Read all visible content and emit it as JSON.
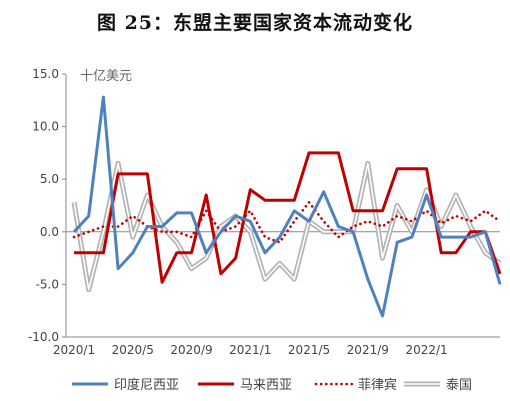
{
  "title": "图 25：东盟主要国家资本流动变化",
  "chart_data": {
    "type": "line",
    "unit_label": "十亿美元",
    "ylim": [
      -10,
      15
    ],
    "yticks": [
      "15.0",
      "10.0",
      "5.0",
      "0.0",
      "-5.0",
      "-10.0"
    ],
    "ytick_values": [
      15,
      10,
      5,
      0,
      -5,
      -10
    ],
    "xlim": [
      0,
      29
    ],
    "xticks": [
      "2020/1",
      "2020/5",
      "2020/9",
      "2021/1",
      "2021/5",
      "2021/9",
      "2022/1"
    ],
    "xtick_positions": [
      0,
      4,
      8,
      12,
      16,
      20,
      24
    ],
    "grid": false,
    "legend_position": "bottom",
    "series": [
      {
        "name": "印度尼西亚",
        "color": "#4f81bd",
        "style": "solid",
        "x": [
          0,
          1,
          2,
          3,
          4,
          5,
          6,
          7,
          8,
          9,
          10,
          11,
          12,
          13,
          14,
          15,
          16,
          17,
          18,
          19,
          20,
          21,
          22,
          23,
          24,
          25,
          26,
          27,
          28,
          29
        ],
        "values": [
          0.0,
          1.5,
          12.8,
          -3.5,
          -2.0,
          0.5,
          0.5,
          1.8,
          1.8,
          -2.0,
          0.0,
          1.5,
          1.0,
          -2.0,
          -0.5,
          2.0,
          1.0,
          3.8,
          0.5,
          0.0,
          -4.5,
          -8.0,
          -1.0,
          -0.5,
          3.5,
          -0.5,
          -0.5,
          -0.5,
          0.0,
          -5.0
        ]
      },
      {
        "name": "马来西亚",
        "color": "#c00000",
        "style": "solid",
        "x": [
          0,
          1,
          2,
          3,
          4,
          5,
          6,
          7,
          8,
          9,
          10,
          11,
          12,
          13,
          14,
          15,
          16,
          17,
          18,
          19,
          20,
          21,
          22,
          23,
          24,
          25,
          26,
          27,
          28,
          29
        ],
        "values": [
          -2.0,
          -2.0,
          -2.0,
          5.5,
          5.5,
          5.5,
          -4.8,
          -2.0,
          -2.0,
          3.5,
          -4.0,
          -2.5,
          4.0,
          3.0,
          3.0,
          3.0,
          7.5,
          7.5,
          7.5,
          2.0,
          2.0,
          2.0,
          6.0,
          6.0,
          6.0,
          -2.0,
          -2.0,
          0.0,
          0.0,
          -4.0
        ]
      },
      {
        "name": "菲律宾",
        "color": "#c00000",
        "style": "dotted",
        "x": [
          0,
          1,
          2,
          3,
          4,
          5,
          6,
          7,
          8,
          9,
          10,
          11,
          12,
          13,
          14,
          15,
          16,
          17,
          18,
          19,
          20,
          21,
          22,
          23,
          24,
          25,
          26,
          27,
          28,
          29
        ],
        "values": [
          -0.5,
          0.0,
          0.5,
          0.5,
          1.5,
          0.5,
          0.0,
          0.0,
          -0.5,
          2.0,
          0.0,
          0.5,
          2.0,
          -0.5,
          -1.0,
          1.0,
          2.8,
          1.0,
          -0.5,
          0.5,
          1.0,
          0.5,
          1.5,
          1.0,
          2.0,
          0.8,
          1.5,
          1.0,
          2.0,
          1.0
        ]
      },
      {
        "name": "泰国",
        "color": "#b3b3b3",
        "style": "double",
        "x": [
          0,
          1,
          2,
          3,
          4,
          5,
          6,
          7,
          8,
          9,
          10,
          11,
          12,
          13,
          14,
          15,
          16,
          17,
          18,
          19,
          20,
          21,
          22,
          23,
          24,
          25,
          26,
          27,
          28,
          29
        ],
        "values": [
          2.8,
          -5.5,
          0.0,
          6.5,
          -0.5,
          3.5,
          0.5,
          -1.0,
          -3.5,
          -2.5,
          0.5,
          1.5,
          0.0,
          -4.5,
          -3.0,
          -4.5,
          1.0,
          0.0,
          0.0,
          0.0,
          6.5,
          -2.5,
          2.5,
          0.0,
          4.0,
          0.5,
          3.5,
          0.5,
          -2.0,
          -3.0
        ]
      }
    ]
  }
}
